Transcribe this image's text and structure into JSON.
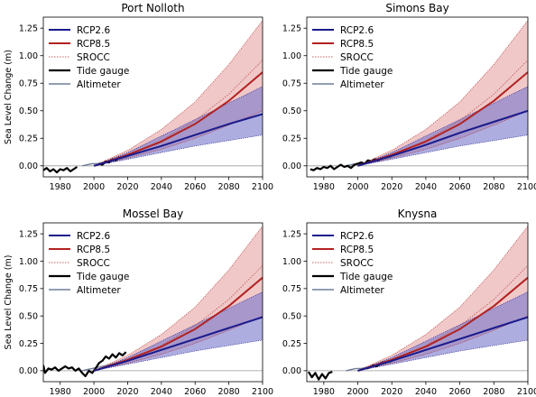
{
  "figure": {
    "ylabel": "Sea Level Change (m)"
  },
  "colors": {
    "rcp26": "#1a1a8c",
    "rcp26_fill": "#7777cc",
    "rcp85": "#b22222",
    "rcp85_fill": "#e6a3a3",
    "srocc": "#c06060",
    "tide": "#000000",
    "altimeter": "#6f7f98"
  },
  "chart_data": [
    {
      "type": "line",
      "title": "Port Nolloth",
      "xlim": [
        1970,
        2100
      ],
      "ylim": [
        -0.1,
        1.35
      ],
      "xticks": [
        1980,
        2000,
        2020,
        2040,
        2060,
        2080,
        2100
      ],
      "yticks": [
        0.0,
        0.25,
        0.5,
        0.75,
        1.0,
        1.25
      ],
      "ytick_labels": [
        "0.00",
        "0.25",
        "0.50",
        "0.75",
        "1.00",
        "1.25"
      ],
      "ylabel": "Sea Level Change (m)",
      "legend": [
        "RCP2.6",
        "RCP8.5",
        "SROCC",
        "Tide gauge",
        "Altimeter"
      ],
      "legend_position": "top-left",
      "series": [
        {
          "name": "RCP2.6",
          "x": [
            2000,
            2020,
            2040,
            2060,
            2080,
            2100
          ],
          "y": [
            0.0,
            0.09,
            0.18,
            0.28,
            0.38,
            0.47
          ],
          "low": [
            0.0,
            0.06,
            0.12,
            0.18,
            0.23,
            0.28
          ],
          "high": [
            0.0,
            0.12,
            0.27,
            0.42,
            0.57,
            0.72
          ]
        },
        {
          "name": "RCP8.5",
          "x": [
            2000,
            2020,
            2040,
            2060,
            2080,
            2100
          ],
          "y": [
            0.0,
            0.1,
            0.22,
            0.38,
            0.59,
            0.85
          ],
          "low": [
            0.0,
            0.07,
            0.15,
            0.25,
            0.37,
            0.5
          ],
          "high": [
            0.0,
            0.14,
            0.33,
            0.58,
            0.92,
            1.32
          ]
        },
        {
          "name": "SROCC",
          "x": [
            2000,
            2020,
            2040,
            2060,
            2080,
            2100
          ],
          "y": [
            0.0,
            0.1,
            0.23,
            0.41,
            0.65,
            0.96
          ]
        },
        {
          "name": "Tide gauge",
          "x": [
            1970,
            1972,
            1974,
            1976,
            1978,
            1980,
            1982,
            1984,
            1986,
            1988,
            1990,
            2003,
            2005,
            2007,
            2009,
            2011,
            2013,
            2015
          ],
          "y": [
            -0.04,
            -0.02,
            -0.05,
            -0.03,
            -0.06,
            -0.03,
            -0.04,
            -0.02,
            -0.05,
            -0.03,
            -0.01,
            0.02,
            0.01,
            0.04,
            0.03,
            0.06,
            0.05,
            0.08
          ]
        },
        {
          "name": "Altimeter",
          "x": [
            1993,
            1996,
            1999,
            2002,
            2005,
            2008,
            2011,
            2014,
            2017,
            2020
          ],
          "y": [
            0.0,
            0.01,
            0.02,
            0.02,
            0.03,
            0.04,
            0.05,
            0.06,
            0.07,
            0.08
          ]
        }
      ]
    },
    {
      "type": "line",
      "title": "Simons Bay",
      "xlim": [
        1970,
        2100
      ],
      "ylim": [
        -0.1,
        1.35
      ],
      "xticks": [
        1980,
        2000,
        2020,
        2040,
        2060,
        2080,
        2100
      ],
      "yticks": [
        0.0,
        0.25,
        0.5,
        0.75,
        1.0,
        1.25
      ],
      "ytick_labels": [
        "0.00",
        "0.25",
        "0.50",
        "0.75",
        "1.00",
        "1.25"
      ],
      "ylabel": "",
      "legend": [
        "RCP2.6",
        "RCP8.5",
        "SROCC",
        "Tide gauge",
        "Altimeter"
      ],
      "legend_position": "top-left",
      "series": [
        {
          "name": "RCP2.6",
          "x": [
            2000,
            2020,
            2040,
            2060,
            2080,
            2100
          ],
          "y": [
            0.0,
            0.09,
            0.19,
            0.3,
            0.4,
            0.5
          ],
          "low": [
            0.0,
            0.06,
            0.12,
            0.18,
            0.23,
            0.28
          ],
          "high": [
            0.0,
            0.12,
            0.27,
            0.42,
            0.57,
            0.72
          ]
        },
        {
          "name": "RCP8.5",
          "x": [
            2000,
            2020,
            2040,
            2060,
            2080,
            2100
          ],
          "y": [
            0.0,
            0.1,
            0.22,
            0.38,
            0.59,
            0.85
          ],
          "low": [
            0.0,
            0.07,
            0.15,
            0.25,
            0.37,
            0.5
          ],
          "high": [
            0.0,
            0.14,
            0.33,
            0.58,
            0.92,
            1.32
          ]
        },
        {
          "name": "SROCC",
          "x": [
            2000,
            2020,
            2040,
            2060,
            2080,
            2100
          ],
          "y": [
            0.0,
            0.1,
            0.23,
            0.41,
            0.65,
            0.96
          ]
        },
        {
          "name": "Tide gauge",
          "x": [
            1972,
            1974,
            1976,
            1978,
            1980,
            1982,
            1984,
            1986,
            1988,
            1990,
            1992,
            1994,
            1996,
            1998,
            2000,
            2002,
            2004,
            2006,
            2008,
            2010,
            2012,
            2014
          ],
          "y": [
            -0.03,
            -0.04,
            -0.02,
            -0.03,
            -0.01,
            -0.02,
            0.0,
            -0.03,
            -0.01,
            0.01,
            -0.01,
            0.0,
            -0.02,
            0.01,
            0.02,
            0.03,
            0.02,
            0.05,
            0.04,
            0.06,
            0.05,
            0.07
          ]
        },
        {
          "name": "Altimeter",
          "x": [
            1993,
            1996,
            1999,
            2002,
            2005,
            2008,
            2011,
            2014,
            2017,
            2020
          ],
          "y": [
            0.0,
            0.01,
            0.02,
            0.02,
            0.03,
            0.04,
            0.05,
            0.06,
            0.07,
            0.08
          ]
        }
      ]
    },
    {
      "type": "line",
      "title": "Mossel Bay",
      "xlim": [
        1970,
        2100
      ],
      "ylim": [
        -0.1,
        1.35
      ],
      "xticks": [
        1980,
        2000,
        2020,
        2040,
        2060,
        2080,
        2100
      ],
      "yticks": [
        0.0,
        0.25,
        0.5,
        0.75,
        1.0,
        1.25
      ],
      "ytick_labels": [
        "0.00",
        "0.25",
        "0.50",
        "0.75",
        "1.00",
        "1.25"
      ],
      "ylabel": "Sea Level Change (m)",
      "legend": [
        "RCP2.6",
        "RCP8.5",
        "SROCC",
        "Tide gauge",
        "Altimeter"
      ],
      "legend_position": "top-left",
      "series": [
        {
          "name": "RCP2.6",
          "x": [
            2000,
            2020,
            2040,
            2060,
            2080,
            2100
          ],
          "y": [
            0.0,
            0.09,
            0.19,
            0.29,
            0.39,
            0.49
          ],
          "low": [
            0.0,
            0.06,
            0.12,
            0.18,
            0.23,
            0.28
          ],
          "high": [
            0.0,
            0.12,
            0.27,
            0.42,
            0.57,
            0.72
          ]
        },
        {
          "name": "RCP8.5",
          "x": [
            2000,
            2020,
            2040,
            2060,
            2080,
            2100
          ],
          "y": [
            0.0,
            0.1,
            0.22,
            0.38,
            0.59,
            0.85
          ],
          "low": [
            0.0,
            0.07,
            0.15,
            0.25,
            0.37,
            0.5
          ],
          "high": [
            0.0,
            0.14,
            0.33,
            0.58,
            0.92,
            1.32
          ]
        },
        {
          "name": "SROCC",
          "x": [
            2000,
            2020,
            2040,
            2060,
            2080,
            2100
          ],
          "y": [
            0.0,
            0.1,
            0.23,
            0.41,
            0.65,
            0.96
          ]
        },
        {
          "name": "Tide gauge",
          "x": [
            1970,
            1971,
            1973,
            1975,
            1977,
            1979,
            1981,
            1983,
            1985,
            1987,
            1989,
            1991,
            1993,
            1995,
            1997,
            1999,
            2001,
            2003,
            2005,
            2007,
            2009,
            2011,
            2013,
            2015,
            2017,
            2019
          ],
          "y": [
            0.05,
            -0.02,
            0.02,
            0.01,
            0.03,
            0.0,
            0.02,
            0.04,
            0.02,
            0.03,
            0.0,
            0.02,
            -0.02,
            -0.05,
            0.0,
            -0.02,
            0.02,
            0.07,
            0.09,
            0.13,
            0.11,
            0.15,
            0.12,
            0.16,
            0.14,
            0.17
          ]
        },
        {
          "name": "Altimeter",
          "x": [
            1993,
            1996,
            1999,
            2002,
            2005,
            2008,
            2011,
            2014,
            2017,
            2020
          ],
          "y": [
            0.0,
            0.01,
            0.02,
            0.03,
            0.04,
            0.05,
            0.06,
            0.07,
            0.08,
            0.09
          ]
        }
      ]
    },
    {
      "type": "line",
      "title": "Knysna",
      "xlim": [
        1970,
        2100
      ],
      "ylim": [
        -0.1,
        1.35
      ],
      "xticks": [
        1980,
        2000,
        2020,
        2040,
        2060,
        2080,
        2100
      ],
      "yticks": [
        0.0,
        0.25,
        0.5,
        0.75,
        1.0,
        1.25
      ],
      "ytick_labels": [
        "0.00",
        "0.25",
        "0.50",
        "0.75",
        "1.00",
        "1.25"
      ],
      "ylabel": "",
      "legend": [
        "RCP2.6",
        "RCP8.5",
        "SROCC",
        "Tide gauge",
        "Altimeter"
      ],
      "legend_position": "top-left",
      "series": [
        {
          "name": "RCP2.6",
          "x": [
            2000,
            2020,
            2040,
            2060,
            2080,
            2100
          ],
          "y": [
            0.0,
            0.09,
            0.19,
            0.29,
            0.39,
            0.49
          ],
          "low": [
            0.0,
            0.06,
            0.12,
            0.18,
            0.23,
            0.28
          ],
          "high": [
            0.0,
            0.12,
            0.27,
            0.42,
            0.57,
            0.72
          ]
        },
        {
          "name": "RCP8.5",
          "x": [
            2000,
            2020,
            2040,
            2060,
            2080,
            2100
          ],
          "y": [
            0.0,
            0.1,
            0.22,
            0.38,
            0.59,
            0.85
          ],
          "low": [
            0.0,
            0.07,
            0.15,
            0.25,
            0.37,
            0.5
          ],
          "high": [
            0.0,
            0.14,
            0.33,
            0.58,
            0.92,
            1.32
          ]
        },
        {
          "name": "SROCC",
          "x": [
            2000,
            2020,
            2040,
            2060,
            2080,
            2100
          ],
          "y": [
            0.0,
            0.1,
            0.23,
            0.41,
            0.65,
            0.96
          ]
        },
        {
          "name": "Tide gauge",
          "x": [
            1971,
            1973,
            1975,
            1977,
            1979,
            1981,
            1983,
            1985,
            2005,
            2007,
            2009,
            2011,
            2013,
            2015
          ],
          "y": [
            -0.01,
            -0.06,
            -0.02,
            -0.08,
            -0.03,
            -0.07,
            -0.02,
            -0.01,
            0.02,
            0.03,
            0.05,
            0.04,
            0.06,
            0.08
          ]
        },
        {
          "name": "Altimeter",
          "x": [
            1993,
            1996,
            1999,
            2002,
            2005,
            2008,
            2011,
            2014,
            2017,
            2020
          ],
          "y": [
            0.0,
            0.01,
            0.02,
            0.02,
            0.03,
            0.04,
            0.05,
            0.06,
            0.07,
            0.08
          ]
        }
      ]
    }
  ]
}
